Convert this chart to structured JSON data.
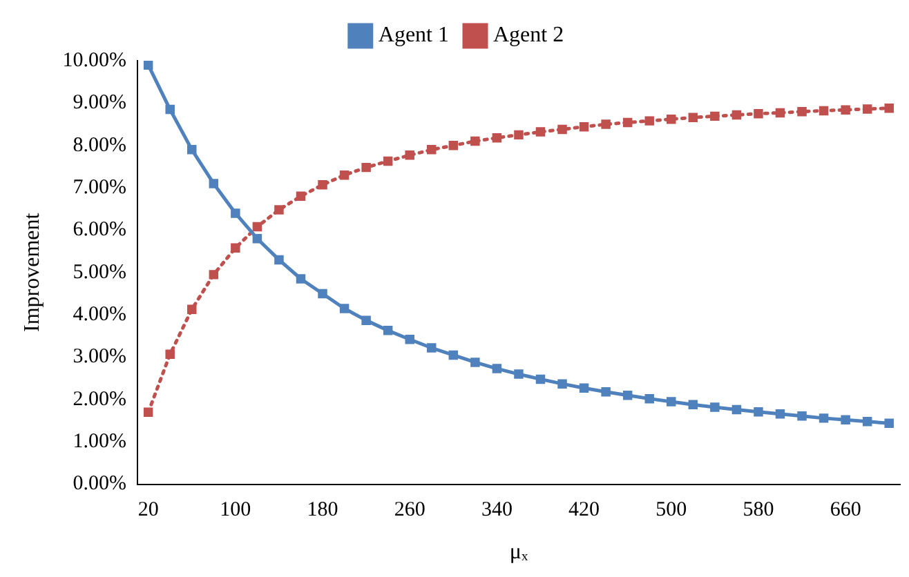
{
  "chart_data": {
    "type": "line",
    "xlabel": "μₓ",
    "ylabel": "Improvement",
    "x": [
      20,
      40,
      60,
      80,
      100,
      120,
      140,
      160,
      180,
      200,
      220,
      240,
      260,
      280,
      300,
      320,
      340,
      360,
      380,
      400,
      420,
      440,
      460,
      480,
      500,
      520,
      540,
      560,
      580,
      600,
      620,
      640,
      660,
      680,
      700
    ],
    "series": [
      {
        "name": "Agent 1",
        "color": "#4f81bd",
        "line_style": "solid",
        "values": [
          9.9,
          8.85,
          7.9,
          7.1,
          6.4,
          5.8,
          5.3,
          4.85,
          4.5,
          4.15,
          3.87,
          3.63,
          3.42,
          3.22,
          3.05,
          2.88,
          2.73,
          2.6,
          2.48,
          2.37,
          2.27,
          2.18,
          2.1,
          2.02,
          1.95,
          1.88,
          1.82,
          1.76,
          1.71,
          1.66,
          1.61,
          1.56,
          1.52,
          1.48,
          1.44
        ]
      },
      {
        "name": "Agent 2",
        "color": "#c0504d",
        "line_style": "dotted",
        "values": [
          1.7,
          3.07,
          4.13,
          4.95,
          5.58,
          6.08,
          6.48,
          6.8,
          7.07,
          7.3,
          7.48,
          7.63,
          7.77,
          7.9,
          8.0,
          8.1,
          8.18,
          8.25,
          8.32,
          8.38,
          8.44,
          8.5,
          8.54,
          8.58,
          8.62,
          8.66,
          8.69,
          8.72,
          8.75,
          8.77,
          8.8,
          8.82,
          8.84,
          8.86,
          8.88
        ]
      }
    ],
    "xlim": [
      10,
      710
    ],
    "xticks": [
      20,
      100,
      180,
      260,
      340,
      420,
      500,
      580,
      660
    ],
    "ylim": [
      0,
      10
    ],
    "yticks": [
      {
        "value": 0,
        "label": "0.00%"
      },
      {
        "value": 1,
        "label": "1.00%"
      },
      {
        "value": 2,
        "label": "2.00%"
      },
      {
        "value": 3,
        "label": "3.00%"
      },
      {
        "value": 4,
        "label": "4.00%"
      },
      {
        "value": 5,
        "label": "5.00%"
      },
      {
        "value": 6,
        "label": "6.00%"
      },
      {
        "value": 7,
        "label": "7.00%"
      },
      {
        "value": 8,
        "label": "8.00%"
      },
      {
        "value": 9,
        "label": "9.00%"
      },
      {
        "value": 10,
        "label": "10.00%"
      }
    ],
    "grid": false,
    "legend": "top",
    "marker": "square"
  }
}
